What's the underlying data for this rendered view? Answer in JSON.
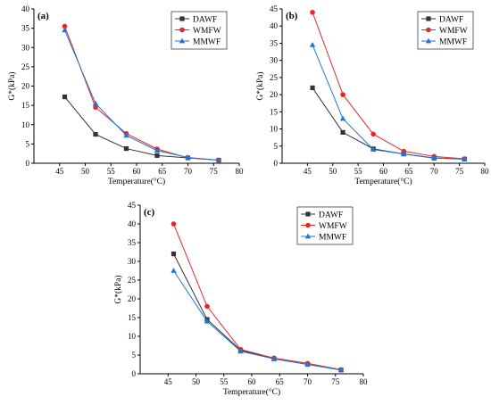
{
  "chart_data": [
    {
      "type": "line",
      "panel_label": "(a)",
      "xlabel": "Temperature(°C)",
      "ylabel": "G*(kPa)",
      "xlim": [
        40,
        80
      ],
      "ylim": [
        0,
        40
      ],
      "xticks": [
        45,
        50,
        55,
        60,
        65,
        70,
        75,
        80
      ],
      "yticks": [
        0,
        5,
        10,
        15,
        20,
        25,
        30,
        35,
        40
      ],
      "legend_position": "top-right",
      "x": [
        46,
        52,
        58,
        64,
        70,
        76
      ],
      "series": [
        {
          "name": "DAWF",
          "values": [
            17.2,
            7.5,
            3.8,
            2.0,
            1.4,
            0.8
          ],
          "color": "#333333",
          "marker": "square"
        },
        {
          "name": "WMFW",
          "values": [
            35.5,
            14.5,
            7.7,
            3.7,
            1.4,
            0.8
          ],
          "color": "#e8262a",
          "marker": "circle"
        },
        {
          "name": "MMWF",
          "values": [
            34.5,
            15.5,
            7.2,
            3.3,
            1.5,
            0.8
          ],
          "color": "#1f77d4",
          "marker": "triangle"
        }
      ]
    },
    {
      "type": "line",
      "panel_label": "(b)",
      "xlabel": "Temperature(°C)",
      "ylabel": "G*(kPa)",
      "xlim": [
        40,
        80
      ],
      "ylim": [
        0,
        45
      ],
      "xticks": [
        45,
        50,
        55,
        60,
        65,
        70,
        75,
        80
      ],
      "yticks": [
        0,
        5,
        10,
        15,
        20,
        25,
        30,
        35,
        40,
        45
      ],
      "legend_position": "top-right",
      "x": [
        46,
        52,
        58,
        64,
        70,
        76
      ],
      "series": [
        {
          "name": "DAWF",
          "values": [
            22.0,
            9.0,
            4.2,
            2.7,
            1.5,
            1.2
          ],
          "color": "#333333",
          "marker": "square"
        },
        {
          "name": "WMFW",
          "values": [
            44.0,
            20.0,
            8.5,
            3.5,
            2.0,
            1.3
          ],
          "color": "#e8262a",
          "marker": "circle"
        },
        {
          "name": "MMWF",
          "values": [
            34.5,
            13.0,
            4.0,
            2.7,
            1.6,
            1.2
          ],
          "color": "#1f77d4",
          "marker": "triangle"
        }
      ]
    },
    {
      "type": "line",
      "panel_label": "(c)",
      "xlabel": "Temperature(°C)",
      "ylabel": "G*(kPa)",
      "xlim": [
        40,
        80
      ],
      "ylim": [
        0,
        45
      ],
      "xticks": [
        45,
        50,
        55,
        60,
        65,
        70,
        75,
        80
      ],
      "yticks": [
        0,
        5,
        10,
        15,
        20,
        25,
        30,
        35,
        40,
        45
      ],
      "legend_position": "top-right",
      "x": [
        46,
        52,
        58,
        64,
        70,
        76
      ],
      "series": [
        {
          "name": "DAWF",
          "values": [
            32.0,
            14.5,
            6.3,
            4.0,
            2.5,
            1.0
          ],
          "color": "#333333",
          "marker": "square"
        },
        {
          "name": "WMFW",
          "values": [
            40.0,
            18.0,
            6.5,
            4.2,
            2.8,
            1.1
          ],
          "color": "#e8262a",
          "marker": "circle"
        },
        {
          "name": "MMWF",
          "values": [
            27.5,
            14.0,
            6.0,
            4.0,
            2.5,
            1.1
          ],
          "color": "#1f77d4",
          "marker": "triangle"
        }
      ]
    }
  ]
}
